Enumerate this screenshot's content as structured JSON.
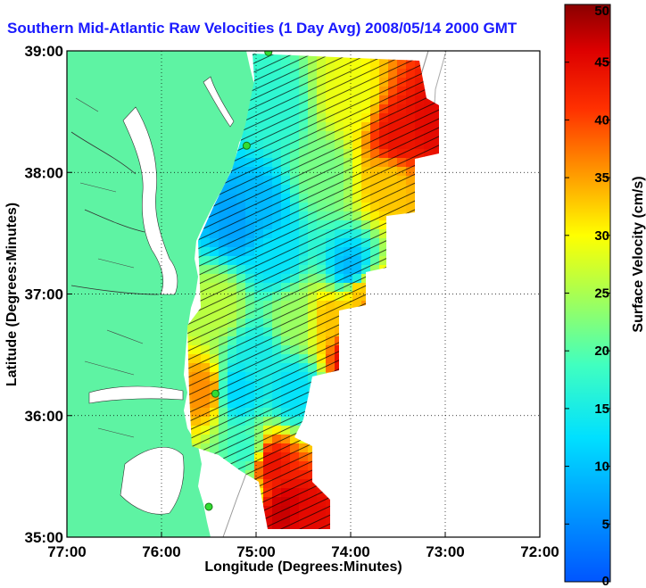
{
  "title": "Southern Mid-Atlantic Raw Velocities (1 Day Avg) 2008/05/14 2000 GMT",
  "colors": {
    "title": "#1a1aff",
    "land": "#5ef3a3",
    "ocean": "#ffffff",
    "vectors": "#000000",
    "hf_radar_sites": "#33dd33"
  },
  "x_axis": {
    "label": "Longitude (Degrees:Minutes)",
    "tick_labels": [
      "77:00",
      "76:00",
      "75:00",
      "74:00",
      "73:00",
      "72:00"
    ]
  },
  "y_axis": {
    "label": "Latitude (Degrees:Minutes)",
    "tick_labels": [
      "35:00",
      "36:00",
      "37:00",
      "38:00",
      "39:00"
    ]
  },
  "colorbar": {
    "label": "Surface Velocity (cm/s)",
    "tick_labels": [
      "0",
      "5",
      "10",
      "15",
      "20",
      "25",
      "30",
      "35",
      "40",
      "45",
      "50"
    ],
    "colormap": "jet",
    "range": [
      0,
      50
    ]
  },
  "chart_data": {
    "type": "heatmap",
    "title": "Southern Mid-Atlantic Raw Velocities (1 Day Avg) 2008/05/14 2000 GMT",
    "xlabel": "Longitude (Degrees:Minutes)",
    "ylabel": "Latitude (Degrees:Minutes)",
    "xlim": [
      -77,
      -72
    ],
    "ylim": [
      35,
      39
    ],
    "grid": true,
    "value_label": "Surface Velocity (cm/s)",
    "value_range": [
      0,
      50
    ],
    "hf_radar_sites": [
      {
        "lon": -74.87,
        "lat": 38.99
      },
      {
        "lon": -75.1,
        "lat": 38.22
      },
      {
        "lon": -75.43,
        "lat": 36.18
      },
      {
        "lon": -75.5,
        "lat": 35.25
      }
    ],
    "speed_regions": [
      {
        "lon": -73.5,
        "lat": 38.3,
        "speed": 44
      },
      {
        "lon": -73.15,
        "lat": 38.4,
        "speed": 45
      },
      {
        "lon": -73.6,
        "lat": 37.9,
        "speed": 33
      },
      {
        "lon": -74.0,
        "lat": 38.6,
        "speed": 29
      },
      {
        "lon": -74.3,
        "lat": 38.0,
        "speed": 22
      },
      {
        "lon": -74.8,
        "lat": 38.5,
        "speed": 17
      },
      {
        "lon": -75.0,
        "lat": 37.7,
        "speed": 9
      },
      {
        "lon": -75.2,
        "lat": 37.6,
        "speed": 7
      },
      {
        "lon": -74.8,
        "lat": 37.3,
        "speed": 13
      },
      {
        "lon": -74.0,
        "lat": 37.2,
        "speed": 9
      },
      {
        "lon": -73.9,
        "lat": 37.0,
        "speed": 33
      },
      {
        "lon": -73.7,
        "lat": 36.85,
        "speed": 44
      },
      {
        "lon": -74.2,
        "lat": 36.8,
        "speed": 33
      },
      {
        "lon": -73.95,
        "lat": 36.5,
        "speed": 46
      },
      {
        "lon": -74.6,
        "lat": 36.8,
        "speed": 24
      },
      {
        "lon": -75.0,
        "lat": 36.5,
        "speed": 15
      },
      {
        "lon": -75.4,
        "lat": 36.9,
        "speed": 26
      },
      {
        "lon": -75.2,
        "lat": 36.2,
        "speed": 12
      },
      {
        "lon": -74.6,
        "lat": 36.2,
        "speed": 13
      },
      {
        "lon": -75.55,
        "lat": 36.2,
        "speed": 36
      },
      {
        "lon": -75.1,
        "lat": 35.7,
        "speed": 18
      },
      {
        "lon": -74.85,
        "lat": 35.6,
        "speed": 44
      },
      {
        "lon": -74.7,
        "lat": 35.2,
        "speed": 47
      },
      {
        "lon": -74.5,
        "lat": 35.15,
        "speed": 45
      },
      {
        "lon": -75.2,
        "lat": 35.4,
        "speed": 20
      }
    ]
  }
}
